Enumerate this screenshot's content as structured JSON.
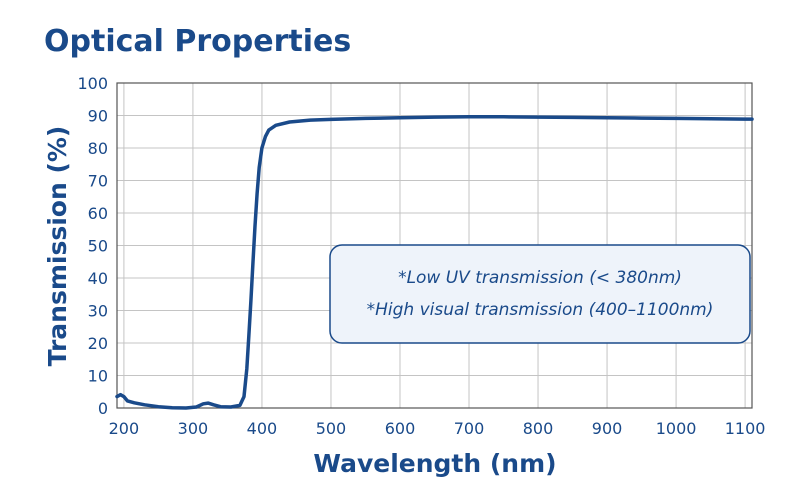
{
  "colors": {
    "primary": "#1a4a8a",
    "grid": "#c4c4c4",
    "axis": "#555555",
    "note_fill": "#eef3fa",
    "note_stroke": "#1a4a8a"
  },
  "chart_data": {
    "type": "line",
    "title": "Optical Properties",
    "xlabel": "Wavelength (nm)",
    "ylabel": "Transmission (%)",
    "xlim": [
      190,
      1110
    ],
    "ylim": [
      0,
      100
    ],
    "xticks": [
      200,
      300,
      400,
      500,
      600,
      700,
      800,
      900,
      1000,
      1100
    ],
    "yticks": [
      0,
      10,
      20,
      30,
      40,
      50,
      60,
      70,
      80,
      90,
      100
    ],
    "grid": true,
    "annotations": [
      "*Low UV transmission (< 380nm)",
      "*High visual transmission (400–1100nm)"
    ],
    "series": [
      {
        "x": [
          190,
          195,
          200,
          205,
          215,
          230,
          250,
          270,
          290,
          305,
          315,
          322,
          330,
          340,
          355,
          368,
          374,
          378,
          381,
          384,
          387,
          390,
          393,
          396,
          400,
          405,
          410,
          420,
          440,
          470,
          500,
          550,
          600,
          650,
          700,
          750,
          800,
          850,
          900,
          950,
          1000,
          1050,
          1100,
          1110
        ],
        "y": [
          3.5,
          4.1,
          3.5,
          2.2,
          1.6,
          1.0,
          0.4,
          0.1,
          0.0,
          0.3,
          1.3,
          1.5,
          1.0,
          0.4,
          0.3,
          0.8,
          3.5,
          12,
          22,
          33,
          45,
          56,
          66,
          74,
          80,
          83.5,
          85.5,
          87,
          88,
          88.6,
          88.8,
          89.1,
          89.3,
          89.5,
          89.6,
          89.6,
          89.5,
          89.4,
          89.3,
          89.2,
          89.1,
          89.0,
          88.9,
          88.9
        ]
      }
    ]
  }
}
